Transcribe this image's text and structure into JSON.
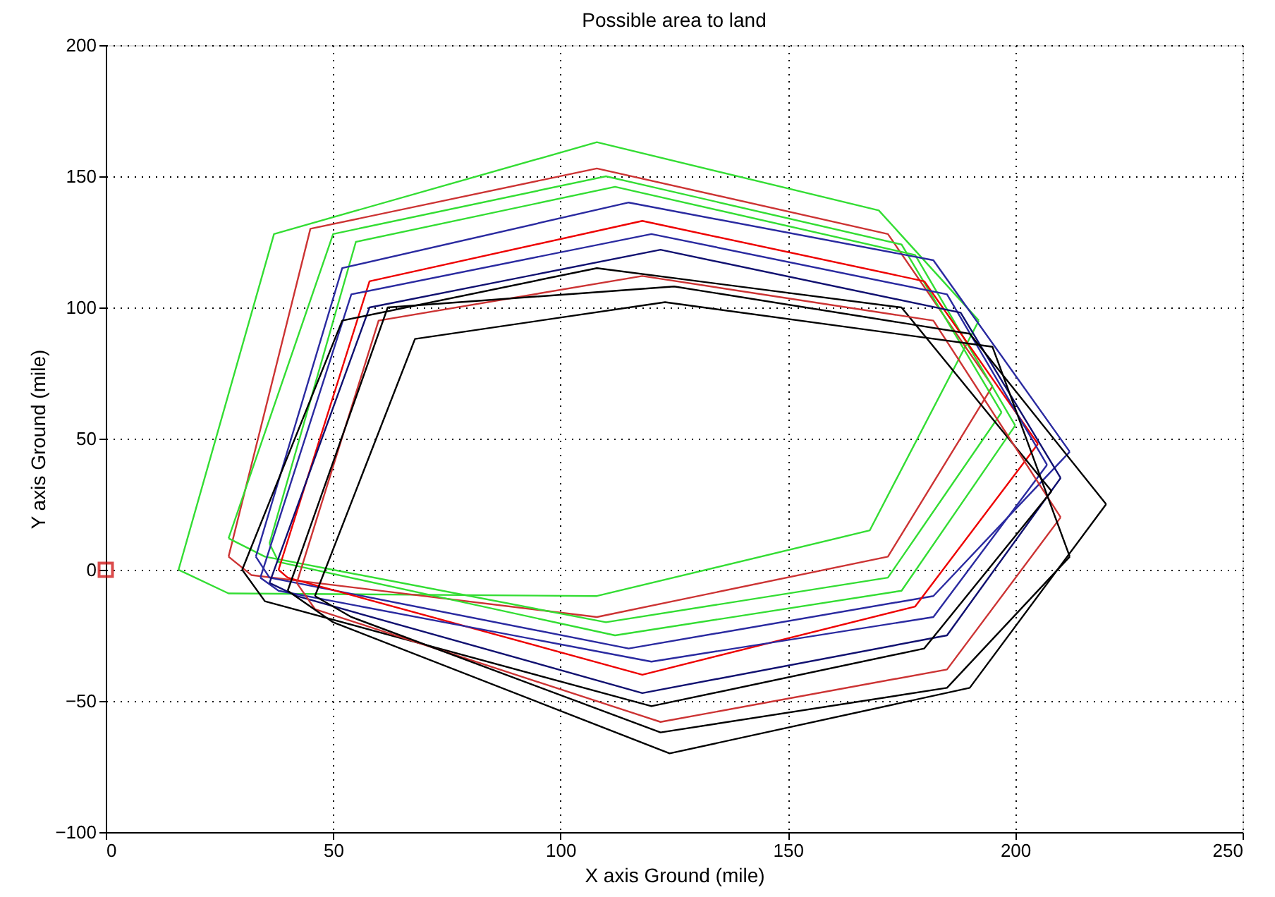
{
  "chart_data": {
    "type": "line",
    "title": "Possible area to land",
    "xlabel": "X axis Ground (mile)",
    "ylabel": "Y axis Ground (mile)",
    "xlim": [
      0,
      250
    ],
    "xticks": [
      0,
      50,
      100,
      150,
      200,
      250
    ],
    "ylim": [
      -100,
      200
    ],
    "yticks": [
      -100,
      -50,
      0,
      50,
      100,
      150,
      200
    ],
    "grid": true,
    "line_style": "solid",
    "marker": "none",
    "series": [
      {
        "color": "#33dd33",
        "x": [
          16,
          37,
          108,
          170,
          192
        ],
        "values": [
          0,
          128,
          163,
          137,
          95
        ]
      },
      {
        "color": "#33dd33",
        "x": [
          16,
          27,
          108,
          168,
          192
        ],
        "values": [
          0,
          -9,
          -10,
          15,
          95
        ]
      },
      {
        "color": "#cc3333",
        "x": [
          27,
          45,
          108,
          172,
          195
        ],
        "values": [
          5,
          130,
          153,
          128,
          70
        ]
      },
      {
        "color": "#cc3333",
        "x": [
          27,
          32,
          108,
          172,
          195
        ],
        "values": [
          5,
          -2,
          -18,
          5,
          70
        ]
      },
      {
        "color": "#33dd33",
        "x": [
          27,
          50,
          110,
          175,
          197
        ],
        "values": [
          12,
          128,
          150,
          124,
          60
        ]
      },
      {
        "color": "#33dd33",
        "x": [
          27,
          35,
          110,
          172,
          197
        ],
        "values": [
          12,
          5,
          -20,
          -3,
          60
        ]
      },
      {
        "color": "#33dd33",
        "x": [
          36,
          55,
          112,
          178,
          200
        ],
        "values": [
          10,
          125,
          146,
          120,
          55
        ]
      },
      {
        "color": "#33dd33",
        "x": [
          36,
          38,
          112,
          175,
          200
        ],
        "values": [
          10,
          3,
          -25,
          -8,
          55
        ]
      },
      {
        "color": "#2a2aa0",
        "x": [
          33,
          52,
          115,
          182,
          212
        ],
        "values": [
          5,
          115,
          140,
          118,
          45
        ]
      },
      {
        "color": "#2a2aa0",
        "x": [
          33,
          36,
          115,
          182,
          212
        ],
        "values": [
          5,
          -3,
          -30,
          -10,
          45
        ]
      },
      {
        "color": "#ee0000",
        "x": [
          38,
          58,
          118,
          180,
          205
        ],
        "values": [
          0,
          110,
          133,
          110,
          48
        ]
      },
      {
        "color": "#ee0000",
        "x": [
          38,
          40,
          118,
          178,
          205
        ],
        "values": [
          0,
          -3,
          -40,
          -14,
          48
        ]
      },
      {
        "color": "#2a2aa0",
        "x": [
          34,
          54,
          120,
          185,
          207
        ],
        "values": [
          -3,
          105,
          128,
          105,
          40
        ]
      },
      {
        "color": "#2a2aa0",
        "x": [
          34,
          38,
          120,
          182,
          207
        ],
        "values": [
          -3,
          -8,
          -35,
          -18,
          40
        ]
      },
      {
        "color": "#101070",
        "x": [
          36,
          58,
          122,
          188,
          210
        ],
        "values": [
          -5,
          100,
          122,
          98,
          35
        ]
      },
      {
        "color": "#101070",
        "x": [
          36,
          42,
          118,
          185,
          210
        ],
        "values": [
          -5,
          -10,
          -47,
          -25,
          35
        ]
      },
      {
        "color": "#000000",
        "x": [
          30,
          52,
          108,
          175,
          208
        ],
        "values": [
          0,
          95,
          115,
          100,
          30
        ]
      },
      {
        "color": "#000000",
        "x": [
          30,
          35,
          120,
          180,
          208
        ],
        "values": [
          0,
          -12,
          -52,
          -30,
          30
        ]
      },
      {
        "color": "#cc3333",
        "x": [
          42,
          60,
          118,
          182,
          210
        ],
        "values": [
          -5,
          95,
          112,
          95,
          20
        ]
      },
      {
        "color": "#cc3333",
        "x": [
          42,
          46,
          122,
          185,
          210
        ],
        "values": [
          -5,
          -15,
          -58,
          -38,
          20
        ]
      },
      {
        "color": "#000000",
        "x": [
          40,
          62,
          125,
          190,
          220
        ],
        "values": [
          -8,
          100,
          108,
          90,
          25
        ]
      },
      {
        "color": "#000000",
        "x": [
          40,
          50,
          124,
          190,
          220
        ],
        "values": [
          -8,
          -20,
          -70,
          -45,
          25
        ]
      },
      {
        "color": "#000000",
        "x": [
          46,
          68,
          123,
          195,
          212
        ],
        "values": [
          -10,
          88,
          102,
          85,
          5
        ]
      },
      {
        "color": "#000000",
        "x": [
          46,
          54,
          122,
          185,
          212
        ],
        "values": [
          -10,
          -18,
          -62,
          -45,
          5
        ]
      },
      {
        "type": "scatter",
        "marker": "square",
        "color": "#cc0000",
        "x": [
          0
        ],
        "values": [
          0
        ]
      }
    ]
  }
}
